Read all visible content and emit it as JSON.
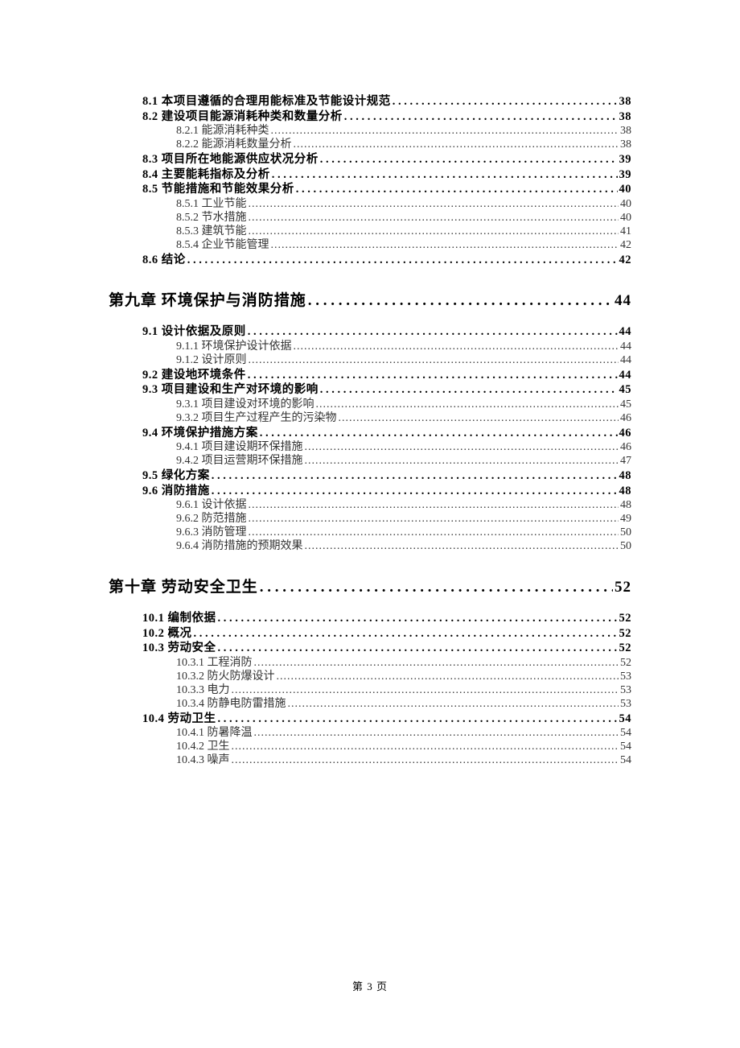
{
  "text_color": "#000000",
  "background_color": "#ffffff",
  "font_level1_size": 14.5,
  "font_level2_size": 14,
  "font_chapter_size": 19,
  "entries": [
    {
      "type": "level-1",
      "label": "8.1 本项目遵循的合理用能标准及节能设计规范",
      "page": "38"
    },
    {
      "type": "level-1",
      "label": "8.2 建设项目能源消耗种类和数量分析",
      "page": "38"
    },
    {
      "type": "level-2",
      "label": "8.2.1 能源消耗种类",
      "page": "38"
    },
    {
      "type": "level-2",
      "label": "8.2.2 能源消耗数量分析",
      "page": "38"
    },
    {
      "type": "level-1",
      "label": "8.3 项目所在地能源供应状况分析",
      "page": "39"
    },
    {
      "type": "level-1",
      "label": "8.4 主要能耗指标及分析",
      "page": "39"
    },
    {
      "type": "level-1",
      "label": "8.5 节能措施和节能效果分析",
      "page": "40"
    },
    {
      "type": "level-2",
      "label": "8.5.1 工业节能",
      "page": "40"
    },
    {
      "type": "level-2",
      "label": "8.5.2 节水措施",
      "page": "40"
    },
    {
      "type": "level-2",
      "label": "8.5.3 建筑节能",
      "page": "41"
    },
    {
      "type": "level-2",
      "label": "8.5.4 企业节能管理",
      "page": "42"
    },
    {
      "type": "level-1",
      "label": "8.6 结论",
      "page": "42"
    },
    {
      "type": "chapter",
      "label": "第九章  环境保护与消防措施",
      "page": "44"
    },
    {
      "type": "level-1",
      "label": "9.1 设计依据及原则",
      "page": "44"
    },
    {
      "type": "level-2",
      "label": "9.1.1 环境保护设计依据",
      "page": "44"
    },
    {
      "type": "level-2",
      "label": "9.1.2 设计原则",
      "page": "44"
    },
    {
      "type": "level-1",
      "label": "9.2 建设地环境条件",
      "page": "44"
    },
    {
      "type": "level-1",
      "label": "9.3  项目建设和生产对环境的影响",
      "page": "45"
    },
    {
      "type": "level-2",
      "label": "9.3.1  项目建设对环境的影响",
      "page": "45"
    },
    {
      "type": "level-2",
      "label": "9.3.2 项目生产过程产生的污染物",
      "page": "46"
    },
    {
      "type": "level-1",
      "label": "9.4  环境保护措施方案",
      "page": "46"
    },
    {
      "type": "level-2",
      "label": "9.4.1  项目建设期环保措施",
      "page": "46"
    },
    {
      "type": "level-2",
      "label": "9.4.2  项目运营期环保措施",
      "page": "47"
    },
    {
      "type": "level-1",
      "label": "9.5 绿化方案",
      "page": "48"
    },
    {
      "type": "level-1",
      "label": "9.6 消防措施",
      "page": "48"
    },
    {
      "type": "level-2",
      "label": "9.6.1 设计依据",
      "page": "48"
    },
    {
      "type": "level-2",
      "label": "9.6.2 防范措施",
      "page": "49"
    },
    {
      "type": "level-2",
      "label": "9.6.3 消防管理",
      "page": "50"
    },
    {
      "type": "level-2",
      "label": "9.6.4 消防措施的预期效果",
      "page": "50"
    },
    {
      "type": "chapter",
      "label": "第十章  劳动安全卫生",
      "page": "52"
    },
    {
      "type": "level-1",
      "label": "10.1  编制依据",
      "page": "52"
    },
    {
      "type": "level-1",
      "label": "10.2 概况",
      "page": "52"
    },
    {
      "type": "level-1",
      "label": "10.3  劳动安全",
      "page": "52"
    },
    {
      "type": "level-2",
      "label": "10.3.1 工程消防",
      "page": "52"
    },
    {
      "type": "level-2",
      "label": "10.3.2 防火防爆设计",
      "page": "53"
    },
    {
      "type": "level-2",
      "label": "10.3.3 电力",
      "page": "53"
    },
    {
      "type": "level-2",
      "label": "10.3.4 防静电防雷措施",
      "page": "53"
    },
    {
      "type": "level-1",
      "label": "10.4 劳动卫生",
      "page": "54"
    },
    {
      "type": "level-2",
      "label": "10.4.1 防暑降温",
      "page": "54"
    },
    {
      "type": "level-2",
      "label": "10.4.2 卫生",
      "page": "54"
    },
    {
      "type": "level-2",
      "label": "10.4.3 噪声",
      "page": "54"
    }
  ],
  "footer": "第 3 页"
}
